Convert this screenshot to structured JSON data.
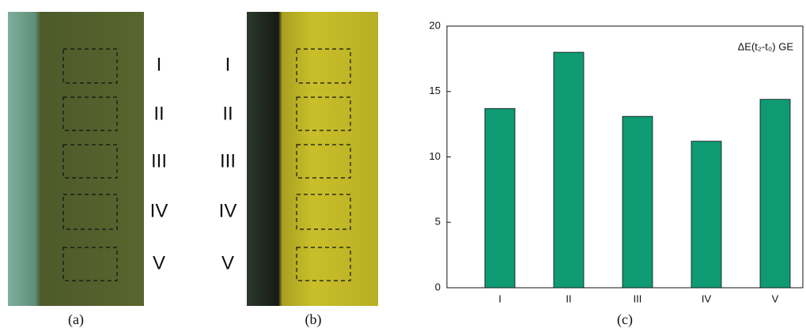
{
  "photo_a": {
    "caption": "(a)",
    "labels": [
      "I",
      "II",
      "III",
      "IV",
      "V"
    ]
  },
  "photo_b": {
    "caption": "(b)",
    "labels": [
      "I",
      "II",
      "III",
      "IV",
      "V"
    ]
  },
  "chart_data": {
    "type": "bar",
    "caption": "(c)",
    "annotation": "ΔE(t₂-t₀) GE",
    "categories": [
      "I",
      "II",
      "III",
      "IV",
      "V"
    ],
    "values": [
      13.7,
      18.0,
      13.1,
      11.2,
      14.4
    ],
    "color": "#0e9a73",
    "ylim": [
      0,
      20
    ],
    "yticks": [
      0,
      5,
      10,
      15,
      20
    ],
    "grid": false
  }
}
